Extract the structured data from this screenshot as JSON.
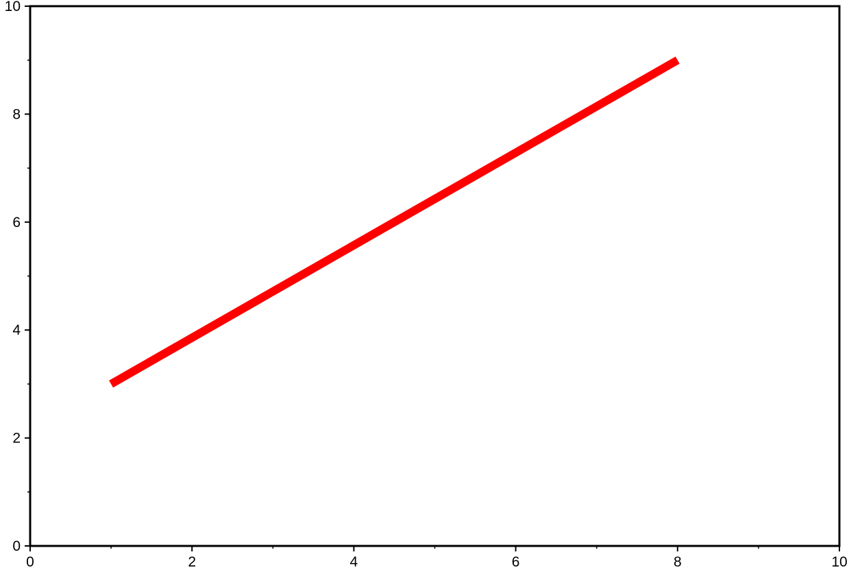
{
  "chart_data": {
    "type": "line",
    "x": [
      1,
      8
    ],
    "series": [
      {
        "color": "#ff0000",
        "values": [
          3,
          9
        ]
      }
    ],
    "xlim": [
      0,
      10
    ],
    "ylim": [
      0,
      10
    ],
    "xticks": [
      0,
      2,
      4,
      6,
      8,
      10
    ],
    "yticks": [
      0,
      2,
      4,
      6,
      8,
      10
    ],
    "grid": false
  }
}
